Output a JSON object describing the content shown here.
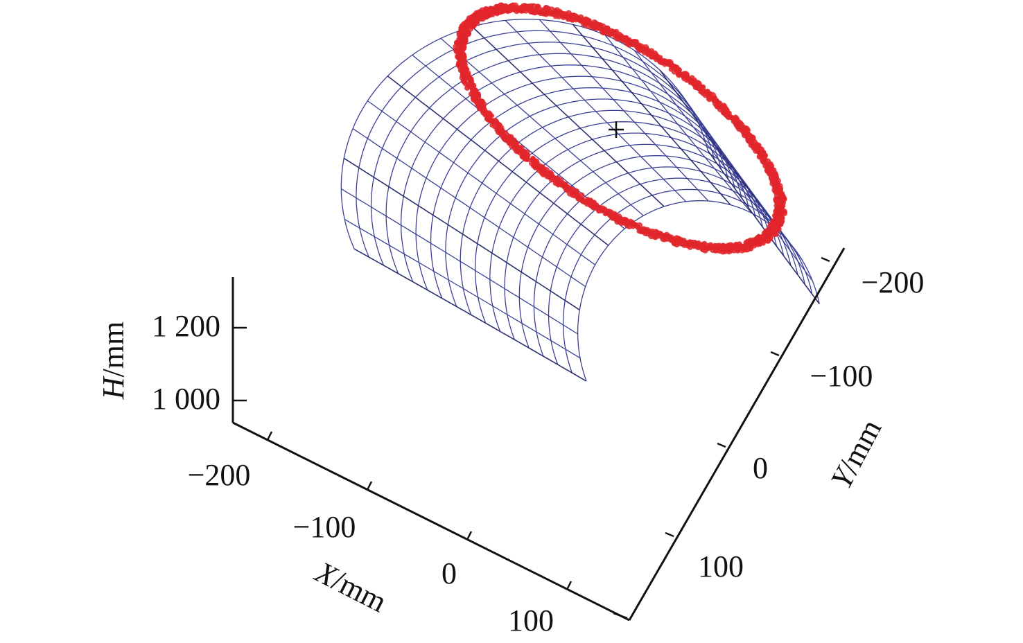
{
  "chart_data": {
    "type": "scatter",
    "title": "",
    "projection": "3d",
    "axes": {
      "x": {
        "label_var": "X",
        "label_unit": "/mm",
        "ticks": [
          "−200",
          "−100",
          "0",
          "100"
        ],
        "tick_values": [
          -200,
          -100,
          0,
          100
        ]
      },
      "y": {
        "label_var": "Y",
        "label_unit": "/mm",
        "ticks": [
          "−200",
          "−100",
          "0",
          "100"
        ],
        "tick_values": [
          -200,
          -100,
          0,
          100
        ]
      },
      "h": {
        "label_var": "H",
        "label_unit": "/mm",
        "ticks": [
          "1 000",
          "1 200"
        ],
        "tick_values": [
          1000,
          1200
        ]
      }
    },
    "series": [
      {
        "kind": "mesh-surface",
        "color": "#3a3f95",
        "shape": "partial cylindrical shell (wireframe)"
      },
      {
        "kind": "ring-point-cloud",
        "color": "#e0262c",
        "shape": "closed ring of scattered points on the surface"
      }
    ],
    "grid": false,
    "legend": "none"
  }
}
